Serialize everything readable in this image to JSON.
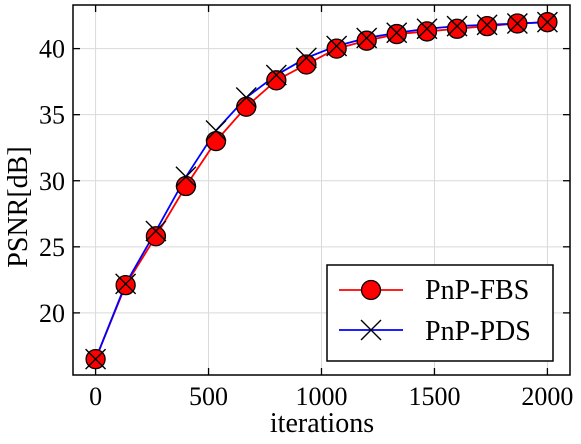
{
  "chart_data": {
    "type": "line",
    "title": "",
    "xlabel": "iterations",
    "ylabel": "PSNR[dB]",
    "xlim": [
      -100,
      2100
    ],
    "ylim": [
      15.3,
      43.3
    ],
    "xticks": [
      0,
      500,
      1000,
      1500,
      2000
    ],
    "yticks": [
      20,
      25,
      30,
      35,
      40
    ],
    "grid": true,
    "legend_position": "bottom-right",
    "x": [
      0,
      133,
      267,
      400,
      533,
      667,
      800,
      933,
      1067,
      1200,
      1333,
      1467,
      1600,
      1733,
      1867,
      2000
    ],
    "series": [
      {
        "name": "PnP-FBS",
        "color": "#ff0000",
        "marker": "circle",
        "marker_fill": "#ff0000",
        "values": [
          16.5,
          22.1,
          25.8,
          29.6,
          33.0,
          35.6,
          37.6,
          38.8,
          40.0,
          40.6,
          41.1,
          41.3,
          41.5,
          41.7,
          41.9,
          42.0
        ]
      },
      {
        "name": "PnP-PDS",
        "color": "#0000ff",
        "marker": "x",
        "values": [
          16.5,
          22.2,
          26.2,
          30.3,
          33.8,
          36.3,
          38.0,
          39.3,
          40.2,
          40.8,
          41.2,
          41.5,
          41.7,
          41.8,
          41.9,
          42.0
        ]
      }
    ]
  }
}
